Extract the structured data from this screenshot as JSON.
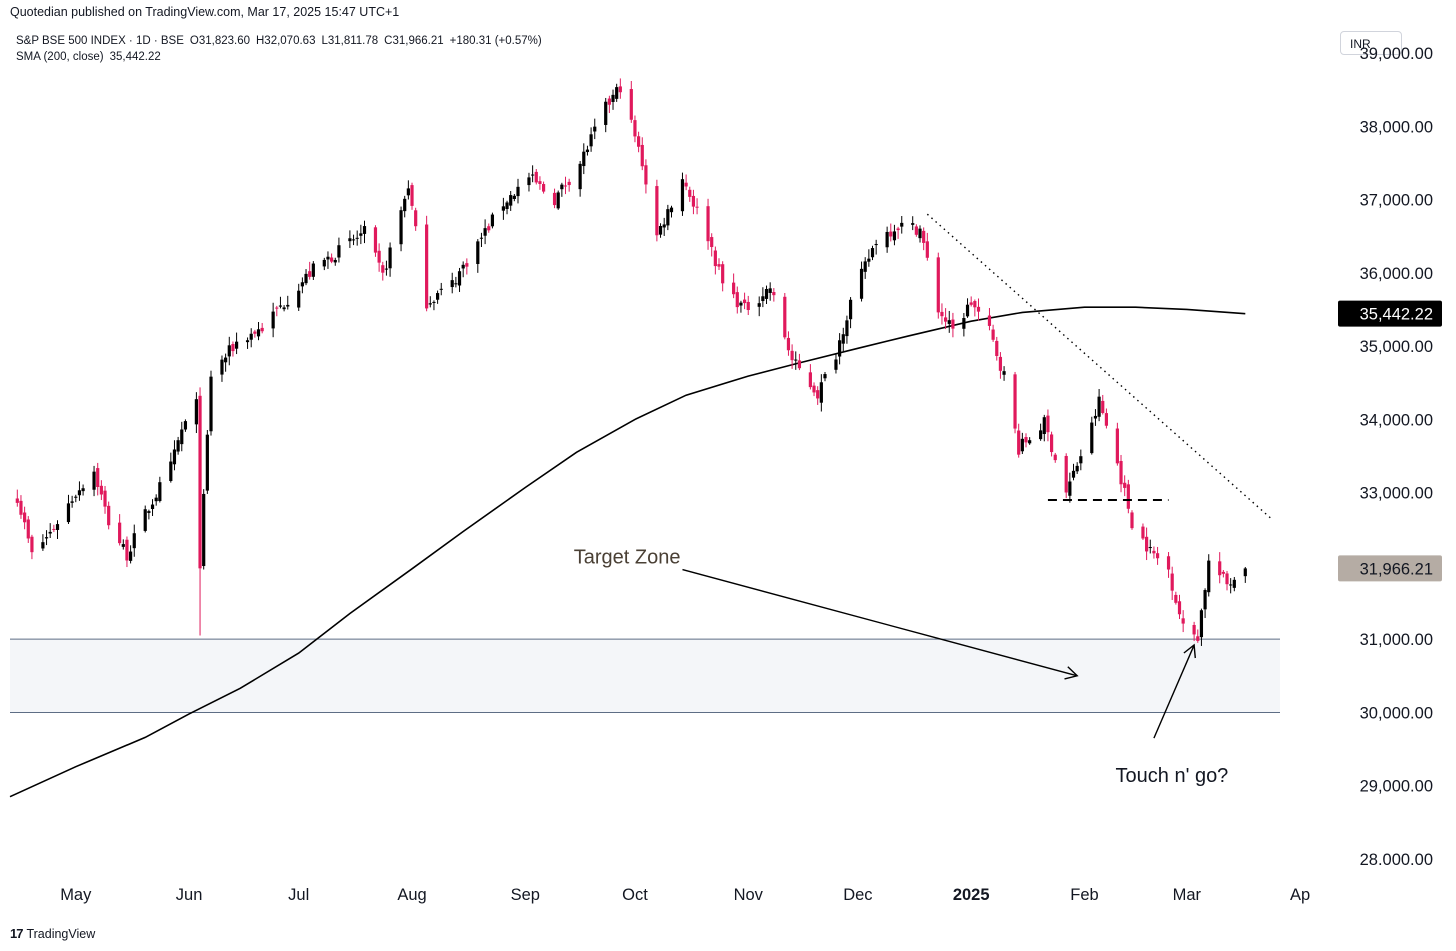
{
  "header": {
    "publisher": "Quotedian published on TradingView.com, Mar 17, 2025 15:47 UTC+1"
  },
  "legend": {
    "symbol": "S&P BSE 500 INDEX · 1D · BSE",
    "open": "O31,823.60",
    "high": "H32,070.63",
    "low": "L31,811.78",
    "close": "C31,966.21",
    "change": "+180.31 (+0.57%)",
    "indicator": "SMA (200, close)",
    "indicator_value": "35,442.22"
  },
  "currency_button": "INR",
  "footer": {
    "logo": "17",
    "brand": "TradingView"
  },
  "colors": {
    "up": "#000000",
    "down": "#e0195c",
    "sma": "#000000",
    "zone": "#f4f6f9",
    "zone_line": "#5d6d85",
    "annotation": "#4a4035"
  },
  "chart_data": {
    "type": "candlestick",
    "y_range": [
      27850,
      39450
    ],
    "y_ticks": [
      {
        "value": 39000,
        "label": "39,000.00"
      },
      {
        "value": 38000,
        "label": "38,000.00"
      },
      {
        "value": 37000,
        "label": "37,000.00"
      },
      {
        "value": 36000,
        "label": "36,000.00"
      },
      {
        "value": 35000,
        "label": "35,000.00"
      },
      {
        "value": 34000,
        "label": "34,000.00"
      },
      {
        "value": 33000,
        "label": "33,000.00"
      },
      {
        "value": 31000,
        "label": "31,000.00"
      },
      {
        "value": 30000,
        "label": "30,000.00"
      },
      {
        "value": 29000,
        "label": "29,000.00"
      },
      {
        "value": 28000,
        "label": "28.000.00"
      }
    ],
    "x_ticks": [
      {
        "date": "2024-05-01",
        "label": "May",
        "bold": false
      },
      {
        "date": "2024-06-01",
        "label": "Jun",
        "bold": false
      },
      {
        "date": "2024-07-01",
        "label": "Jul",
        "bold": false
      },
      {
        "date": "2024-08-01",
        "label": "Aug",
        "bold": false
      },
      {
        "date": "2024-09-01",
        "label": "Sep",
        "bold": false
      },
      {
        "date": "2024-10-01",
        "label": "Oct",
        "bold": false
      },
      {
        "date": "2024-11-01",
        "label": "Nov",
        "bold": false
      },
      {
        "date": "2024-12-01",
        "label": "Dec",
        "bold": false
      },
      {
        "date": "2025-01-01",
        "label": "2025",
        "bold": true
      },
      {
        "date": "2025-02-01",
        "label": "Feb",
        "bold": false
      },
      {
        "date": "2025-03-01",
        "label": "Mar",
        "bold": false
      },
      {
        "date": "2025-04-01",
        "label": "Ap",
        "bold": false
      }
    ],
    "x_range": [
      "2024-04-13",
      "2025-04-10"
    ],
    "price_labels": {
      "sma": {
        "value": 35442.22,
        "label": "35,442.22"
      },
      "last": {
        "value": 31966.21,
        "label": "31,966.21"
      }
    },
    "target_zone": {
      "low": 30000,
      "high": 31000,
      "label": "Target Zone"
    },
    "annotations": {
      "touch_label": "Touch n' go?",
      "resistance_level": 32900,
      "resistance_from": "2025-01-22",
      "resistance_to": "2025-02-24",
      "trendline_from": {
        "date": "2024-12-20",
        "value": 36800
      },
      "trendline_to": {
        "date": "2025-03-24",
        "value": 32650
      },
      "zone_arrow_from": {
        "date": "2024-10-14",
        "value": 31950
      },
      "zone_arrow_to": {
        "date": "2025-01-30",
        "value": 30500
      },
      "touch_arrow_from": {
        "date": "2025-02-20",
        "value": 29650
      },
      "touch_arrow_to": {
        "date": "2025-03-03",
        "value": 30920
      }
    },
    "sma_points": [
      [
        "2024-04-13",
        28850
      ],
      [
        "2024-05-01",
        29260
      ],
      [
        "2024-05-20",
        29660
      ],
      [
        "2024-06-01",
        29980
      ],
      [
        "2024-06-15",
        30330
      ],
      [
        "2024-07-01",
        30810
      ],
      [
        "2024-07-15",
        31350
      ],
      [
        "2024-08-01",
        31960
      ],
      [
        "2024-08-15",
        32470
      ],
      [
        "2024-09-01",
        33070
      ],
      [
        "2024-09-15",
        33550
      ],
      [
        "2024-10-01",
        34000
      ],
      [
        "2024-10-15",
        34330
      ],
      [
        "2024-11-01",
        34590
      ],
      [
        "2024-11-15",
        34770
      ],
      [
        "2024-12-01",
        34970
      ],
      [
        "2024-12-15",
        35140
      ],
      [
        "2025-01-01",
        35340
      ],
      [
        "2025-01-15",
        35460
      ],
      [
        "2025-02-01",
        35530
      ],
      [
        "2025-02-15",
        35530
      ],
      [
        "2025-03-01",
        35500
      ],
      [
        "2025-03-17",
        35442
      ]
    ],
    "path_points": [
      [
        "2024-04-15",
        32950
      ],
      [
        "2024-04-19",
        32150
      ],
      [
        "2024-04-24",
        32450
      ],
      [
        "2024-05-01",
        33000
      ],
      [
        "2024-05-06",
        33300
      ],
      [
        "2024-05-10",
        32600
      ],
      [
        "2024-05-15",
        32150
      ],
      [
        "2024-05-20",
        32700
      ],
      [
        "2024-05-27",
        33350
      ],
      [
        "2024-05-30",
        33850
      ],
      [
        "2024-06-03",
        34200
      ],
      [
        "2024-06-04",
        32050
      ],
      [
        "2024-06-07",
        34600
      ],
      [
        "2024-06-14",
        35050
      ],
      [
        "2024-06-21",
        35250
      ],
      [
        "2024-06-28",
        35650
      ],
      [
        "2024-07-05",
        36050
      ],
      [
        "2024-07-12",
        36300
      ],
      [
        "2024-07-19",
        36550
      ],
      [
        "2024-07-24",
        35950
      ],
      [
        "2024-07-31",
        37200
      ],
      [
        "2024-08-05",
        35600
      ],
      [
        "2024-08-12",
        35850
      ],
      [
        "2024-08-19",
        36400
      ],
      [
        "2024-08-26",
        36950
      ],
      [
        "2024-09-02",
        37300
      ],
      [
        "2024-09-09",
        37000
      ],
      [
        "2024-09-16",
        37500
      ],
      [
        "2024-09-23",
        38250
      ],
      [
        "2024-09-27",
        38550
      ],
      [
        "2024-10-03",
        37500
      ],
      [
        "2024-10-07",
        36500
      ],
      [
        "2024-10-14",
        37300
      ],
      [
        "2024-10-21",
        36500
      ],
      [
        "2024-10-25",
        35850
      ],
      [
        "2024-10-31",
        35500
      ],
      [
        "2024-11-07",
        35800
      ],
      [
        "2024-11-13",
        34800
      ],
      [
        "2024-11-20",
        34350
      ],
      [
        "2024-11-25",
        34900
      ],
      [
        "2024-11-29",
        35600
      ],
      [
        "2024-12-06",
        36450
      ],
      [
        "2024-12-12",
        36650
      ],
      [
        "2024-12-18",
        36600
      ],
      [
        "2024-12-23",
        35500
      ],
      [
        "2024-12-27",
        35200
      ],
      [
        "2025-01-01",
        35600
      ],
      [
        "2025-01-06",
        35200
      ],
      [
        "2025-01-10",
        34600
      ],
      [
        "2025-01-14",
        33600
      ],
      [
        "2025-01-21",
        33950
      ],
      [
        "2025-01-27",
        33000
      ],
      [
        "2025-02-03",
        33900
      ],
      [
        "2025-02-05",
        34250
      ],
      [
        "2025-02-10",
        33400
      ],
      [
        "2025-02-14",
        32600
      ],
      [
        "2025-02-19",
        32200
      ],
      [
        "2025-02-24",
        31950
      ],
      [
        "2025-02-28",
        31150
      ],
      [
        "2025-03-04",
        31050
      ],
      [
        "2025-03-07",
        32050
      ],
      [
        "2025-03-12",
        31750
      ],
      [
        "2025-03-17",
        31966
      ]
    ]
  }
}
